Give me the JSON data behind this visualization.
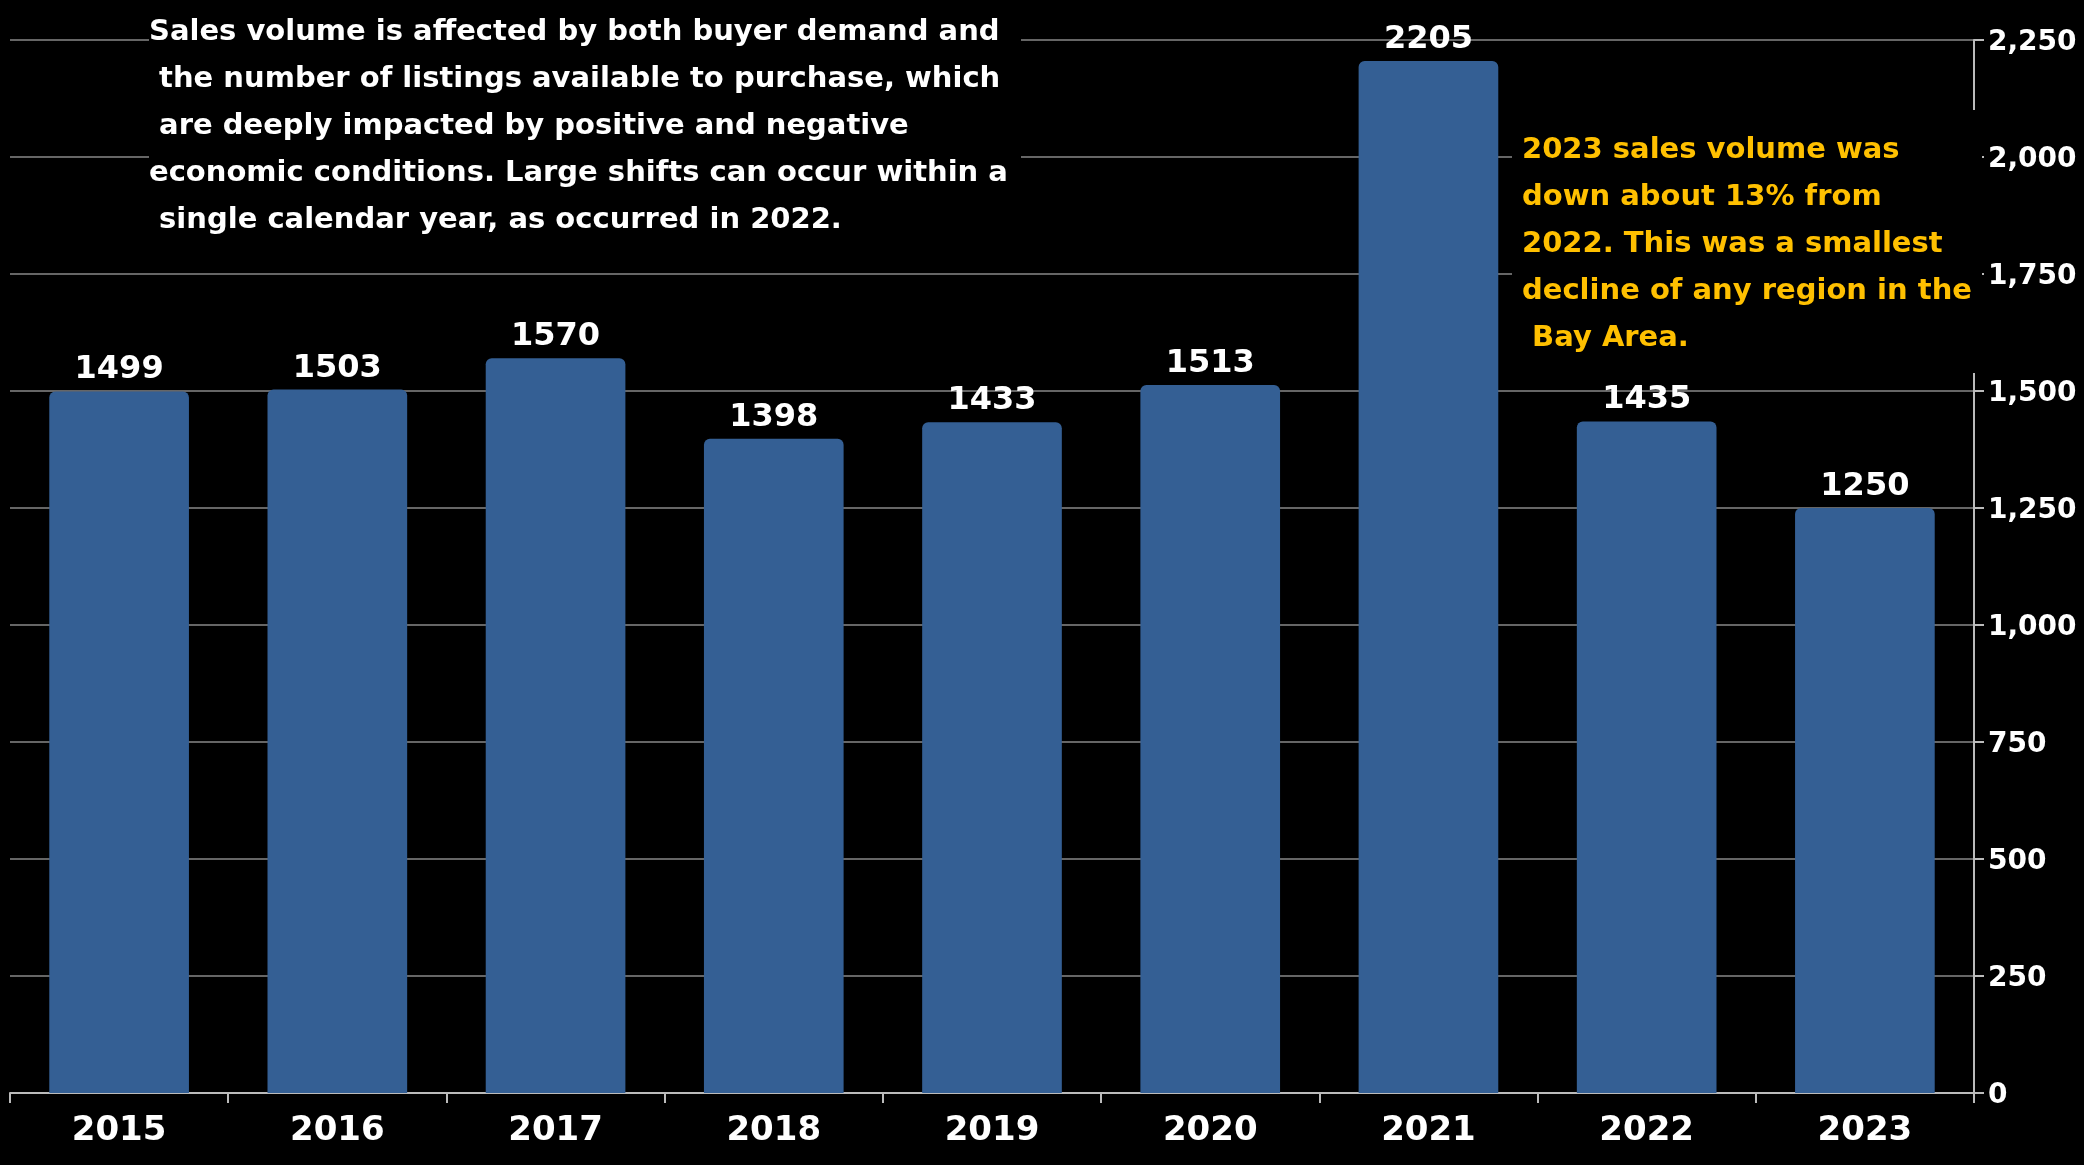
{
  "chart_data": {
    "type": "bar",
    "categories": [
      "2015",
      "2016",
      "2017",
      "2018",
      "2019",
      "2020",
      "2021",
      "2022",
      "2023"
    ],
    "values": [
      1499,
      1503,
      1570,
      1398,
      1433,
      1513,
      2205,
      1435,
      1250
    ],
    "color": "#345f94",
    "ylim": [
      0,
      2250
    ],
    "yticks": [
      0,
      {
        "value": 250,
        "label": "250"
      },
      {
        "value": 500,
        "label": "500"
      },
      {
        "value": 750,
        "label": "750"
      },
      {
        "value": 1000,
        "label": "1,000"
      },
      {
        "value": 1250,
        "label": "1,250"
      },
      {
        "value": 1500,
        "label": "1,500"
      },
      {
        "value": 1750,
        "label": "1,750"
      },
      {
        "value": 2000,
        "label": "2,000"
      },
      {
        "value": 2250,
        "label": "2,250"
      }
    ],
    "grid": "y",
    "data_labels": true,
    "annotations": [
      "Sales volume is affected by both buyer demand and the number of listings available to purchase, which are deeply impacted by positive and negative economic conditions. Large shifts can occur within a single calendar year, as occurred in 2022.",
      "2023 sales volume was down about 13% from 2022. This was a smallest decline of any region in the Bay Area."
    ]
  }
}
